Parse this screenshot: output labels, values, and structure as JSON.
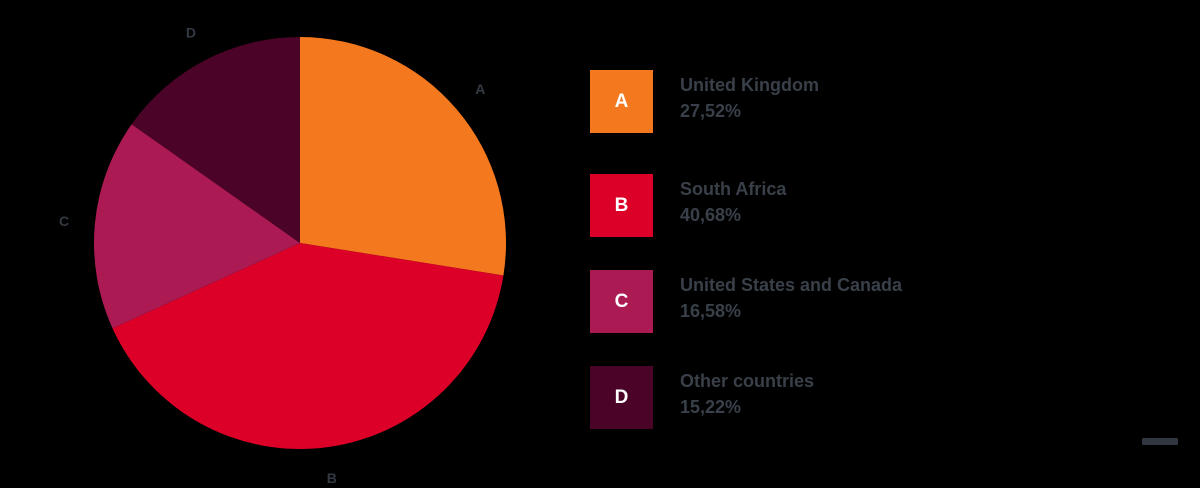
{
  "chart_data": {
    "type": "pie",
    "title": "",
    "categories": [
      "United Kingdom",
      "South Africa",
      "United States and Canada",
      "Other countries"
    ],
    "values": [
      27.52,
      40.68,
      16.58,
      15.22
    ],
    "start_angle_deg": 0,
    "direction": "clockwise",
    "legend_position": "right",
    "background_color": "#000000",
    "text_color": "#394049",
    "slices": [
      {
        "key": "A",
        "label": "United Kingdom",
        "value": 27.52,
        "display_value": "27,52%",
        "color": "#F4781E"
      },
      {
        "key": "B",
        "label": "South Africa",
        "value": 40.68,
        "display_value": "40,68%",
        "color": "#DC0028"
      },
      {
        "key": "C",
        "label": "United States and Canada",
        "value": 16.58,
        "display_value": "16,58%",
        "color": "#AB1A52"
      },
      {
        "key": "D",
        "label": "Other countries",
        "value": 15.22,
        "display_value": "15,22%",
        "color": "#4C0328"
      }
    ]
  }
}
